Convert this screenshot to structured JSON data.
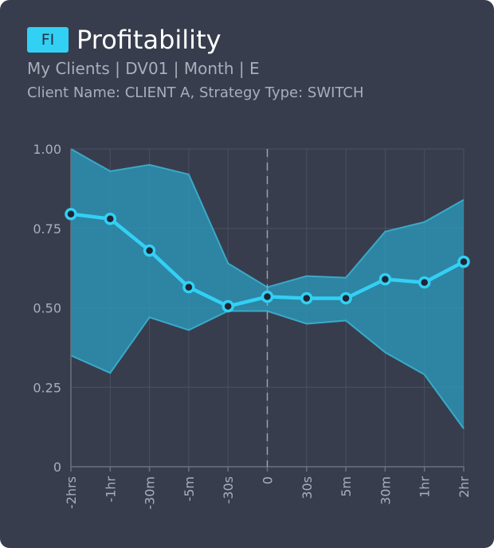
{
  "header": {
    "badge": "FI",
    "title": "Profitability",
    "subtitle": "My Clients | DV01 | Month | E",
    "filters": "Client Name: CLIENT A, Strategy Type: SWITCH"
  },
  "colors": {
    "background": "#373d4d",
    "accent": "#32d0f4",
    "band_fill": "#2b9ec0",
    "band_stroke": "#3aa9c8",
    "point_fill": "#1e2533",
    "grid": "#4a5162",
    "text_muted": "#a8aeba"
  },
  "chart_data": {
    "type": "line",
    "categories": [
      "-2hrs",
      "-1hr",
      "-30m",
      "-5m",
      "-30s",
      "0",
      "30s",
      "5m",
      "30m",
      "1hr",
      "2hr"
    ],
    "series": [
      {
        "values": [
          0.795,
          0.78,
          0.68,
          0.565,
          0.505,
          0.535,
          0.53,
          0.53,
          0.59,
          0.58,
          0.645
        ]
      }
    ],
    "band": {
      "upper": [
        1.0,
        0.93,
        0.95,
        0.92,
        0.64,
        0.565,
        0.6,
        0.595,
        0.74,
        0.77,
        0.84
      ],
      "lower": [
        0.35,
        0.295,
        0.47,
        0.43,
        0.49,
        0.49,
        0.45,
        0.46,
        0.36,
        0.29,
        0.12
      ]
    },
    "y_ticks": [
      "0",
      "0.25",
      "0.50",
      "0.75",
      "1.00"
    ],
    "y_tick_values": [
      0,
      0.25,
      0.5,
      0.75,
      1.0
    ],
    "ylim": [
      0,
      1.0
    ],
    "reference_category": "0",
    "grid": true,
    "legend": "none"
  }
}
